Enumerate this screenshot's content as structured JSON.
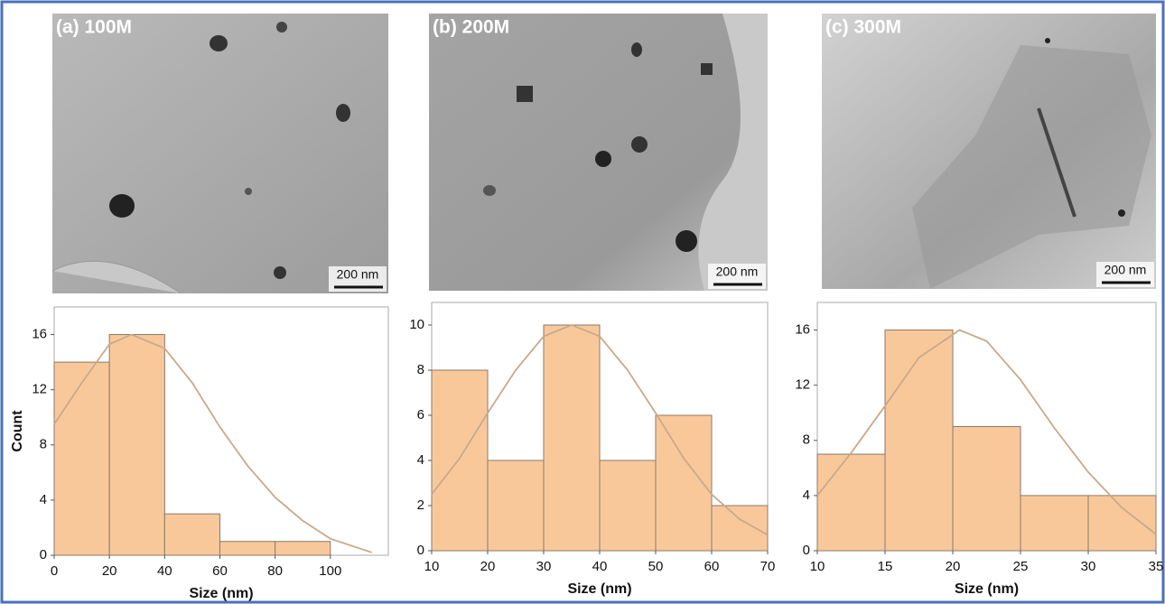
{
  "chart_data": [
    {
      "type": "histogram",
      "image_label": "(a) 100M",
      "scale_bar": "200 nm",
      "bins": [
        0,
        20,
        40,
        60,
        80,
        100
      ],
      "values": [
        14,
        16,
        3,
        1,
        1
      ],
      "color": "#f9c89a",
      "xlim": [
        0,
        121
      ],
      "xticks": [
        0,
        20,
        40,
        60,
        80,
        100
      ],
      "ylim": [
        0,
        18
      ],
      "yticks": [
        0,
        4,
        8,
        12,
        16
      ],
      "xlabel": "Size (nm)",
      "ylabel": "Count",
      "curve": {
        "color": "#c9a98b",
        "x": [
          0,
          10,
          20,
          28,
          40,
          50,
          60,
          70,
          80,
          90,
          100,
          115
        ],
        "y": [
          9.5,
          12.5,
          15.3,
          16,
          15,
          12.5,
          9.3,
          6.5,
          4.2,
          2.5,
          1.2,
          0.2
        ]
      }
    },
    {
      "type": "histogram",
      "image_label": "(b) 200M",
      "scale_bar": "200 nm",
      "bins": [
        10,
        20,
        30,
        40,
        50,
        60,
        70
      ],
      "values": [
        8,
        4,
        10,
        4,
        6,
        2
      ],
      "color": "#f9c89a",
      "xlim": [
        10,
        70
      ],
      "xticks": [
        10,
        20,
        30,
        40,
        50,
        60,
        70
      ],
      "ylim": [
        0,
        11
      ],
      "yticks": [
        0,
        2,
        4,
        6,
        8,
        10
      ],
      "xlabel": "Size (nm)",
      "curve": {
        "color": "#c9a98b",
        "x": [
          10,
          15,
          20,
          25,
          30,
          35,
          40,
          45,
          50,
          55,
          60,
          65,
          70
        ],
        "y": [
          2.5,
          4.1,
          6.1,
          8,
          9.5,
          10,
          9.5,
          8,
          6.1,
          4.1,
          2.5,
          1.4,
          0.7
        ]
      }
    },
    {
      "type": "histogram",
      "image_label": "(c) 300M",
      "scale_bar": "200 nm",
      "bins": [
        10,
        15,
        20,
        25,
        30,
        35
      ],
      "values": [
        7,
        16,
        9,
        4,
        4
      ],
      "color": "#f9c89a",
      "xlim": [
        10,
        35
      ],
      "xticks": [
        10,
        15,
        20,
        25,
        30,
        35
      ],
      "ylim": [
        0,
        18
      ],
      "yticks": [
        0,
        4,
        8,
        12,
        16
      ],
      "xlabel": "Size (nm)",
      "curve": {
        "color": "#c9a98b",
        "x": [
          10,
          12.5,
          15,
          17.5,
          20.5,
          22.5,
          25,
          27.5,
          30,
          32.5,
          35
        ],
        "y": [
          4,
          7.1,
          10.5,
          14,
          16,
          15.2,
          12.4,
          8.9,
          5.7,
          3.1,
          1.2
        ]
      }
    }
  ]
}
